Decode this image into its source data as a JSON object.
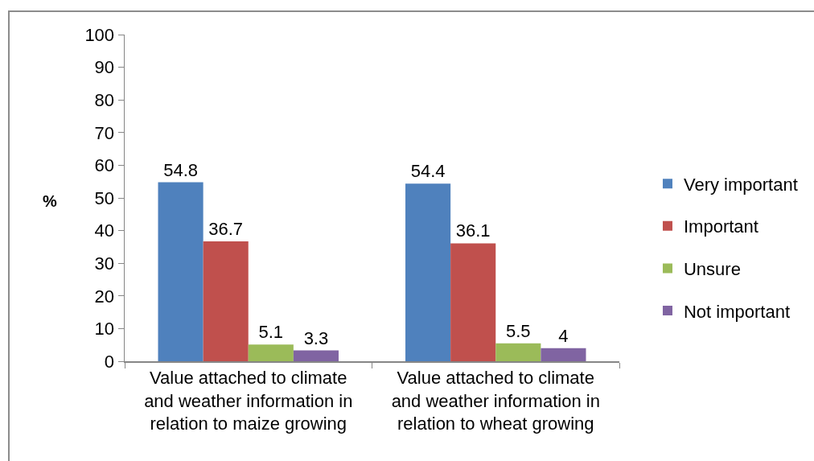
{
  "chart_data": {
    "type": "bar",
    "ylabel": "%",
    "categories": [
      "Value attached to climate and weather information in relation to maize growing",
      "Value attached to climate and weather information in relation to wheat growing"
    ],
    "series": [
      {
        "name": "Very important",
        "color": "#4f81bd",
        "values": [
          54.8,
          54.4
        ]
      },
      {
        "name": "Important",
        "color": "#c0504d",
        "values": [
          36.7,
          36.1
        ]
      },
      {
        "name": "Unsure",
        "color": "#9bbb59",
        "values": [
          5.1,
          5.5
        ]
      },
      {
        "name": "Not important",
        "color": "#8064a2",
        "values": [
          3.3,
          4
        ]
      }
    ],
    "ylim": [
      0,
      100
    ],
    "yticks": [
      0,
      10,
      20,
      30,
      40,
      50,
      60,
      70,
      80,
      90,
      100
    ],
    "grid": false,
    "legend": "right",
    "data_labels": true
  }
}
